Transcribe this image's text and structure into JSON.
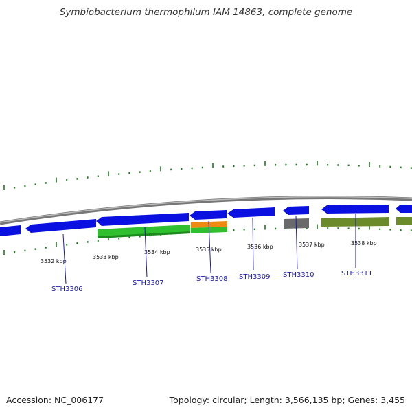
{
  "title": "Symbiobacterium thermophilum IAM 14863, complete genome",
  "footer": {
    "accession": "Accession: NC_006177",
    "summary": "Topology: circular; Length: 3,566,135 bp; Genes: 3,455"
  },
  "colors": {
    "backbone": "#8a8a8a",
    "strand_gene": "#0a10e0",
    "cog_green": "#2fbf2f",
    "cog_orange": "#ef8a10",
    "cog_gray": "#6a6a6a",
    "cog_olive": "#6b8a2a",
    "tick": "#1f7a1f",
    "leader": "#1a1aa8"
  },
  "kbp_labels": [
    "3532 kbp",
    "3533 kbp",
    "3534 kbp",
    "3535 kbp",
    "3536 kbp",
    "3537 kbp",
    "3538 kbp"
  ],
  "genes": [
    "STH3306",
    "STH3307",
    "STH3308",
    "STH3309",
    "STH3310",
    "STH3311"
  ]
}
